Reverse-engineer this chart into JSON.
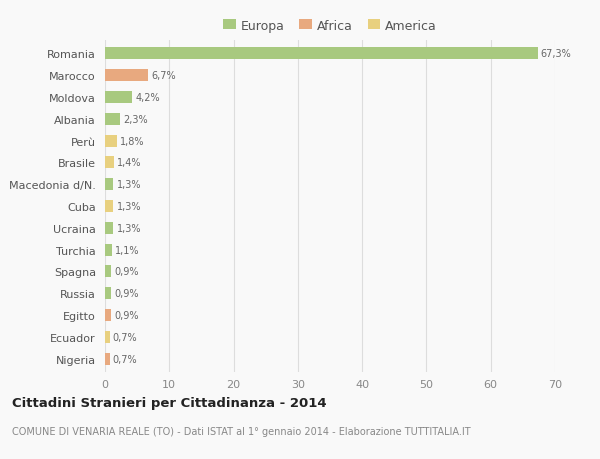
{
  "countries": [
    "Romania",
    "Marocco",
    "Moldova",
    "Albania",
    "Perù",
    "Brasile",
    "Macedonia d/N.",
    "Cuba",
    "Ucraina",
    "Turchia",
    "Spagna",
    "Russia",
    "Egitto",
    "Ecuador",
    "Nigeria"
  ],
  "values": [
    67.3,
    6.7,
    4.2,
    2.3,
    1.8,
    1.4,
    1.3,
    1.3,
    1.3,
    1.1,
    0.9,
    0.9,
    0.9,
    0.7,
    0.7
  ],
  "labels": [
    "67,3%",
    "6,7%",
    "4,2%",
    "2,3%",
    "1,8%",
    "1,4%",
    "1,3%",
    "1,3%",
    "1,3%",
    "1,1%",
    "0,9%",
    "0,9%",
    "0,9%",
    "0,7%",
    "0,7%"
  ],
  "continents": [
    "Europa",
    "Africa",
    "Europa",
    "Europa",
    "America",
    "America",
    "Europa",
    "America",
    "Europa",
    "Europa",
    "Europa",
    "Europa",
    "Africa",
    "America",
    "Africa"
  ],
  "colors": {
    "Europa": "#a8c97f",
    "Africa": "#e8a97f",
    "America": "#e8d07f"
  },
  "xlim": [
    0,
    70
  ],
  "xticks": [
    0,
    10,
    20,
    30,
    40,
    50,
    60,
    70
  ],
  "title": "Cittadini Stranieri per Cittadinanza - 2014",
  "subtitle": "COMUNE DI VENARIA REALE (TO) - Dati ISTAT al 1° gennaio 2014 - Elaborazione TUTTITALIA.IT",
  "background_color": "#f9f9f9",
  "grid_color": "#dddddd",
  "bar_height": 0.55
}
